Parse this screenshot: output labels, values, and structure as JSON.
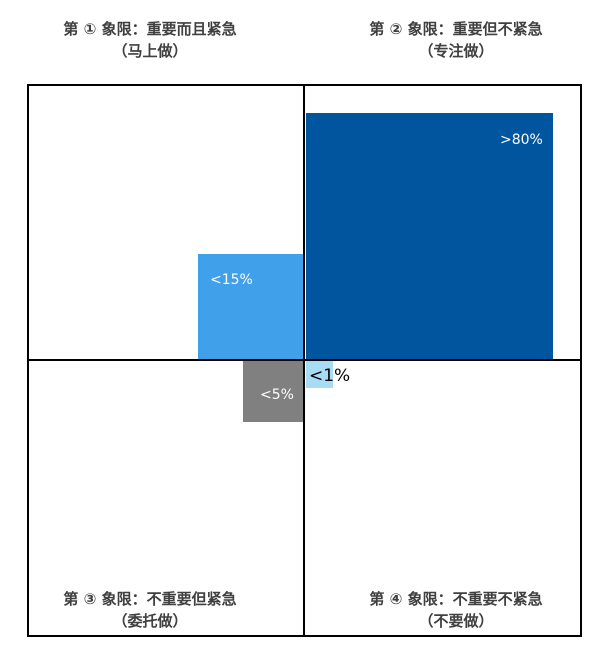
{
  "quadrants": [
    {
      "line1": "第 ① 象限：重要而且紧急",
      "line2": "（马上做）",
      "share": "<15%",
      "color": "#41a0ea"
    },
    {
      "line1": "第 ② 象限：重要但不紧急",
      "line2": "（专注做）",
      "share": ">80%",
      "color": "#00569e"
    },
    {
      "line1": "第 ③ 象限：不重要但紧急",
      "line2": "（委托做）",
      "share": "<5%",
      "color": "#808080"
    },
    {
      "line1": "第 ④ 象限：不重要不紧急",
      "line2": "（不要做）",
      "share": "<1%",
      "color": "#a8dcf5"
    }
  ]
}
